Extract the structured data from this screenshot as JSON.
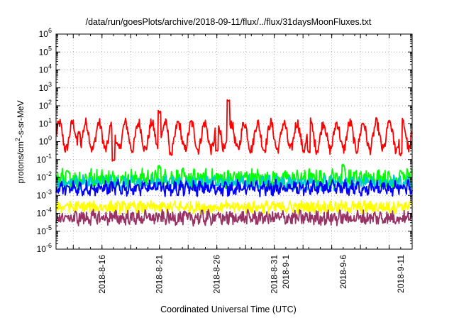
{
  "chart_data": {
    "type": "line",
    "title": "/data/run/goesPlots/archive/2018-09-11/flux/../flux/31daysMoonFluxes.txt",
    "xlabel": "Coordinated Universal Time (UTC)",
    "ylabel": {
      "prefix": "protons/cm",
      "superscript": "2",
      "suffix": "-s-sr-MeV"
    },
    "y_scale": "log",
    "ylim": [
      "1e-6",
      "1e6"
    ],
    "y_ticks": [
      {
        "base": "10",
        "exp": "-6"
      },
      {
        "base": "10",
        "exp": "-5"
      },
      {
        "base": "10",
        "exp": "-4"
      },
      {
        "base": "10",
        "exp": "-3"
      },
      {
        "base": "10",
        "exp": "-2"
      },
      {
        "base": "10",
        "exp": "-1"
      },
      {
        "base": "10",
        "exp": "0"
      },
      {
        "base": "10",
        "exp": "1"
      },
      {
        "base": "10",
        "exp": "2"
      },
      {
        "base": "10",
        "exp": "3"
      },
      {
        "base": "10",
        "exp": "4"
      },
      {
        "base": "10",
        "exp": "5"
      },
      {
        "base": "10",
        "exp": "6"
      }
    ],
    "xlim": [
      "2018-08-12",
      "2018-09-12"
    ],
    "x_tick_labels": [
      {
        "date": "2018-08-16",
        "label": "2018-8-16"
      },
      {
        "date": "2018-08-21",
        "label": "2018-8-21"
      },
      {
        "date": "2018-08-26",
        "label": "2018-8-26"
      },
      {
        "date": "2018-08-31",
        "label": "2018-8-31"
      },
      {
        "date": "2018-09-01",
        "label": "2018-9-1"
      },
      {
        "date": "2018-09-06",
        "label": "2018-9-6"
      },
      {
        "date": "2018-09-11",
        "label": "2018-9-11"
      }
    ],
    "grid": true,
    "series": [
      {
        "color": "#ff0000",
        "base_log10": 0.3,
        "amplitude": 0.75,
        "period_days": 1.15,
        "noise": 0.3,
        "samples": [
          [
            "2018-08-14",
            3.0
          ],
          [
            "2018-08-17",
            0.1
          ],
          [
            "2018-08-21",
            50
          ],
          [
            "2018-08-22",
            0.2
          ],
          [
            "2018-08-27",
            170
          ],
          [
            "2018-08-26",
            0.3
          ],
          [
            "2018-09-03",
            0.3
          ],
          [
            "2018-09-10",
            12
          ],
          [
            "2018-09-11",
            0.2
          ],
          [
            "2018-09-12",
            3.0
          ]
        ]
      },
      {
        "color": "#00ff00",
        "base_log10": -2.05,
        "amplitude": 0.15,
        "period_days": 0.5,
        "noise": 0.45,
        "samples": [
          [
            "2018-08-13",
            0.02
          ],
          [
            "2018-08-21",
            0.04
          ],
          [
            "2018-09-06",
            0.05
          ],
          [
            "2018-09-11",
            0.02
          ]
        ]
      },
      {
        "color": "#00cccc",
        "base_log10": -2.3,
        "amplitude": 0.15,
        "period_days": 0.6,
        "noise": 0.3,
        "samples": [
          [
            "2018-08-13",
            0.005
          ],
          [
            "2018-08-26",
            0.004
          ],
          [
            "2018-09-06",
            0.005
          ]
        ]
      },
      {
        "color": "#0000ff",
        "base_log10": -2.6,
        "amplitude": 0.2,
        "period_days": 0.55,
        "noise": 0.3,
        "samples": [
          [
            "2018-08-13",
            0.003
          ],
          [
            "2018-08-21",
            0.005
          ],
          [
            "2018-09-01",
            0.002
          ],
          [
            "2018-09-11",
            0.003
          ]
        ]
      },
      {
        "color": "#ffff00",
        "base_log10": -3.65,
        "amplitude": 0.1,
        "period_days": 0.5,
        "noise": 0.3,
        "samples": [
          [
            "2018-08-13",
            0.0003
          ],
          [
            "2018-08-26",
            0.0002
          ],
          [
            "2018-09-11",
            0.0003
          ]
        ]
      },
      {
        "color": "#993366",
        "base_log10": -4.25,
        "amplitude": 0.12,
        "period_days": 0.5,
        "noise": 0.35,
        "samples": [
          [
            "2018-08-13",
            6e-05
          ],
          [
            "2018-08-26",
            8e-05
          ],
          [
            "2018-09-11",
            5e-05
          ]
        ]
      }
    ]
  }
}
